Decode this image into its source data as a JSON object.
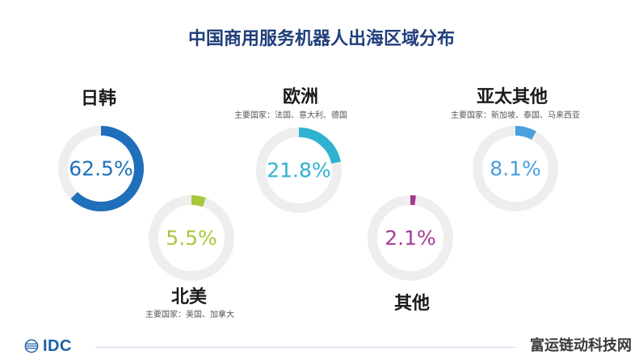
{
  "chart_data": {
    "type": "donut",
    "title": "中国商用服务机器人出海区域分布",
    "series": [
      {
        "name": "日韩",
        "value": 62.5,
        "label": "62.5%",
        "subtitle": "",
        "color": "#1f6fba"
      },
      {
        "name": "欧洲",
        "value": 21.8,
        "label": "21.8%",
        "subtitle": "主要国家：法国、意大利、德国",
        "color": "#2fb1d0"
      },
      {
        "name": "亚太其他",
        "value": 8.1,
        "label": "8.1%",
        "subtitle": "主要国家：新加坡、泰国、马来西亚",
        "color": "#4a9fe0"
      },
      {
        "name": "北美",
        "value": 5.5,
        "label": "5.5%",
        "subtitle": "主要国家：美国、加拿大",
        "color": "#a6c83a"
      },
      {
        "name": "其他",
        "value": 2.1,
        "label": "2.1%",
        "subtitle": "",
        "color": "#a23a94"
      }
    ]
  },
  "logo": {
    "text": "IDC"
  },
  "watermark": {
    "text": "富运链动科技网"
  }
}
